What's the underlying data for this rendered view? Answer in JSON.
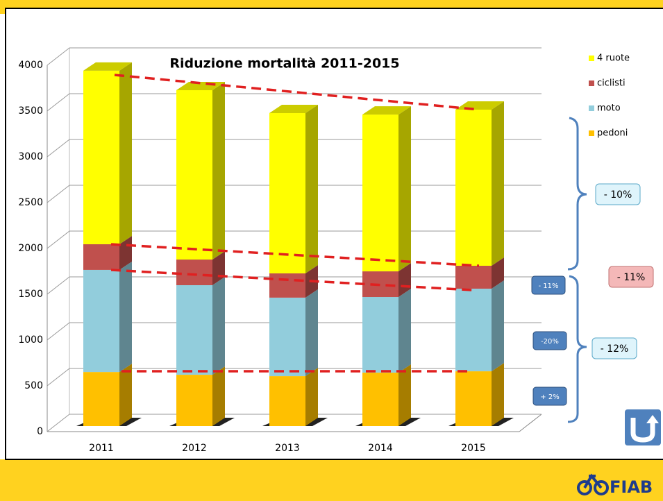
{
  "chart_data": {
    "type": "bar",
    "stacked": true,
    "title": "Riduzione mortalità 2011-2015",
    "categories": [
      "2011",
      "2012",
      "2013",
      "2014",
      "2015"
    ],
    "series": [
      {
        "name": "pedoni",
        "color": "#ffc000",
        "values": [
          590,
          560,
          545,
          583,
          598
        ]
      },
      {
        "name": "moto",
        "color": "#92cddc",
        "values": [
          1115,
          978,
          857,
          826,
          902
        ]
      },
      {
        "name": "ciclisti",
        "color": "#c0504d",
        "values": [
          280,
          280,
          265,
          280,
          250
        ]
      },
      {
        "name": "4 ruote",
        "color": "#ffff00",
        "values": [
          1895,
          1849,
          1750,
          1712,
          1705
        ]
      }
    ],
    "ylim": [
      0,
      4000
    ],
    "yticks": [
      0,
      500,
      1000,
      1500,
      2000,
      2500,
      3000,
      3500,
      4000
    ],
    "grid": true,
    "legend": "right",
    "annotations": [
      "- 10%",
      "- 11%",
      "- 12%",
      "- 11%",
      "-20%",
      "+ 2%"
    ]
  },
  "footer": {
    "logo": "FIAB"
  }
}
